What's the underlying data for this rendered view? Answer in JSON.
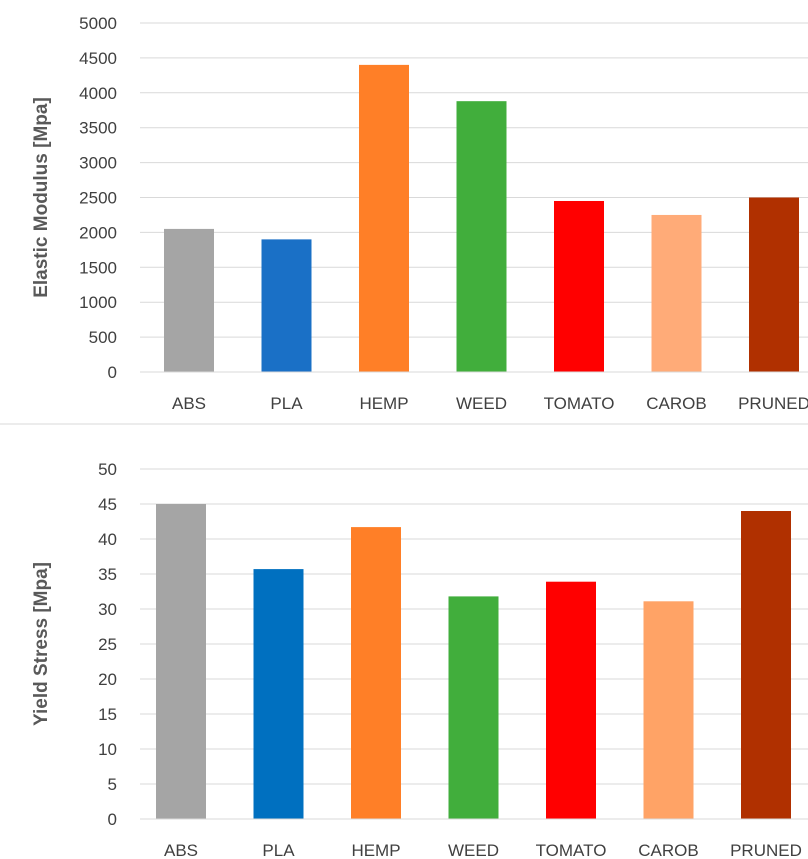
{
  "chart_data": [
    {
      "type": "bar",
      "title": "",
      "xlabel": "",
      "ylabel": "Elastic Modulus [Mpa]",
      "ylim": [
        0,
        5000
      ],
      "yticks": [
        0,
        500,
        1000,
        1500,
        2000,
        2500,
        3000,
        3500,
        4000,
        4500,
        5000
      ],
      "grid": true,
      "categories": [
        "ABS",
        "PLA",
        "HEMP",
        "WEED",
        "TOMATO",
        "CAROB",
        "PRUNED"
      ],
      "values": [
        2050,
        1900,
        4400,
        3880,
        2450,
        2250,
        2500
      ],
      "colors": [
        "#a5a5a5",
        "#1a70c6",
        "#ff7f27",
        "#41ae3c",
        "#ff0000",
        "#ffab78",
        "#b03000"
      ]
    },
    {
      "type": "bar",
      "title": "",
      "xlabel": "",
      "ylabel": "Yield Stress  [Mpa]",
      "ylim": [
        0,
        50
      ],
      "yticks": [
        0,
        5,
        10,
        15,
        20,
        25,
        30,
        35,
        40,
        45,
        50
      ],
      "grid": true,
      "categories": [
        "ABS",
        "PLA",
        "HEMP",
        "WEED",
        "TOMATO",
        "CAROB",
        "PRUNED"
      ],
      "values": [
        45,
        35.7,
        41.7,
        31.8,
        33.9,
        31.1,
        44
      ],
      "colors": [
        "#a5a5a5",
        "#0070c0",
        "#ff7f27",
        "#41ae3c",
        "#ff0000",
        "#ffa366",
        "#b03000"
      ]
    }
  ]
}
